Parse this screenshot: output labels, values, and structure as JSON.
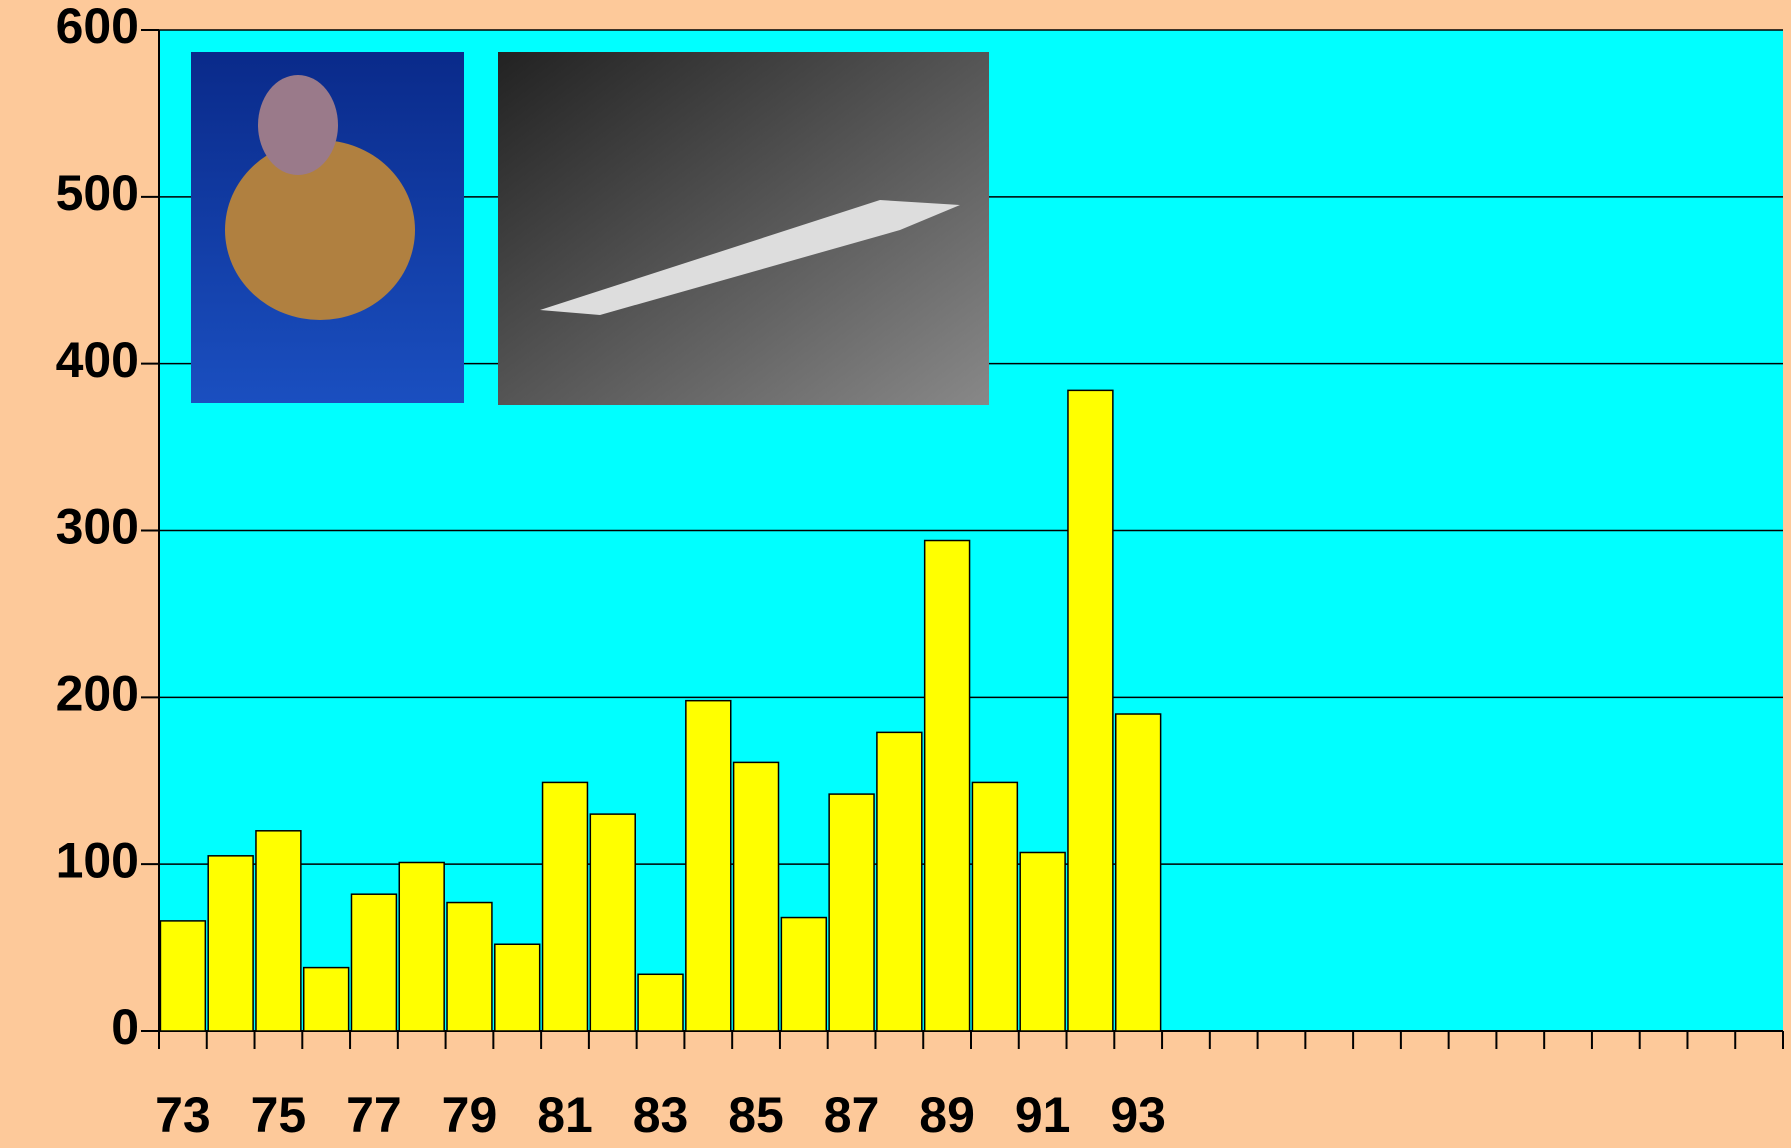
{
  "chart_data": {
    "type": "bar",
    "categories": [
      "73",
      null,
      "75",
      null,
      "77",
      null,
      "79",
      null,
      "81",
      null,
      "83",
      null,
      "85",
      null,
      "87",
      null,
      "89",
      null,
      "91",
      null,
      "93",
      null,
      null,
      null,
      null,
      null,
      null,
      null,
      null,
      null,
      null,
      null,
      null,
      null
    ],
    "values": [
      66,
      105,
      120,
      38,
      82,
      101,
      77,
      52,
      149,
      130,
      34,
      198,
      161,
      68,
      142,
      179,
      294,
      149,
      107,
      384,
      190,
      null,
      null,
      null,
      null,
      null,
      null,
      null,
      null,
      null,
      null,
      null,
      null,
      null
    ],
    "color": "#ffff00",
    "plot_background": "#00ffff",
    "ylim": [
      0,
      600
    ],
    "yticks": [
      0,
      100,
      200,
      300,
      400,
      500,
      600
    ],
    "grid": true
  }
}
